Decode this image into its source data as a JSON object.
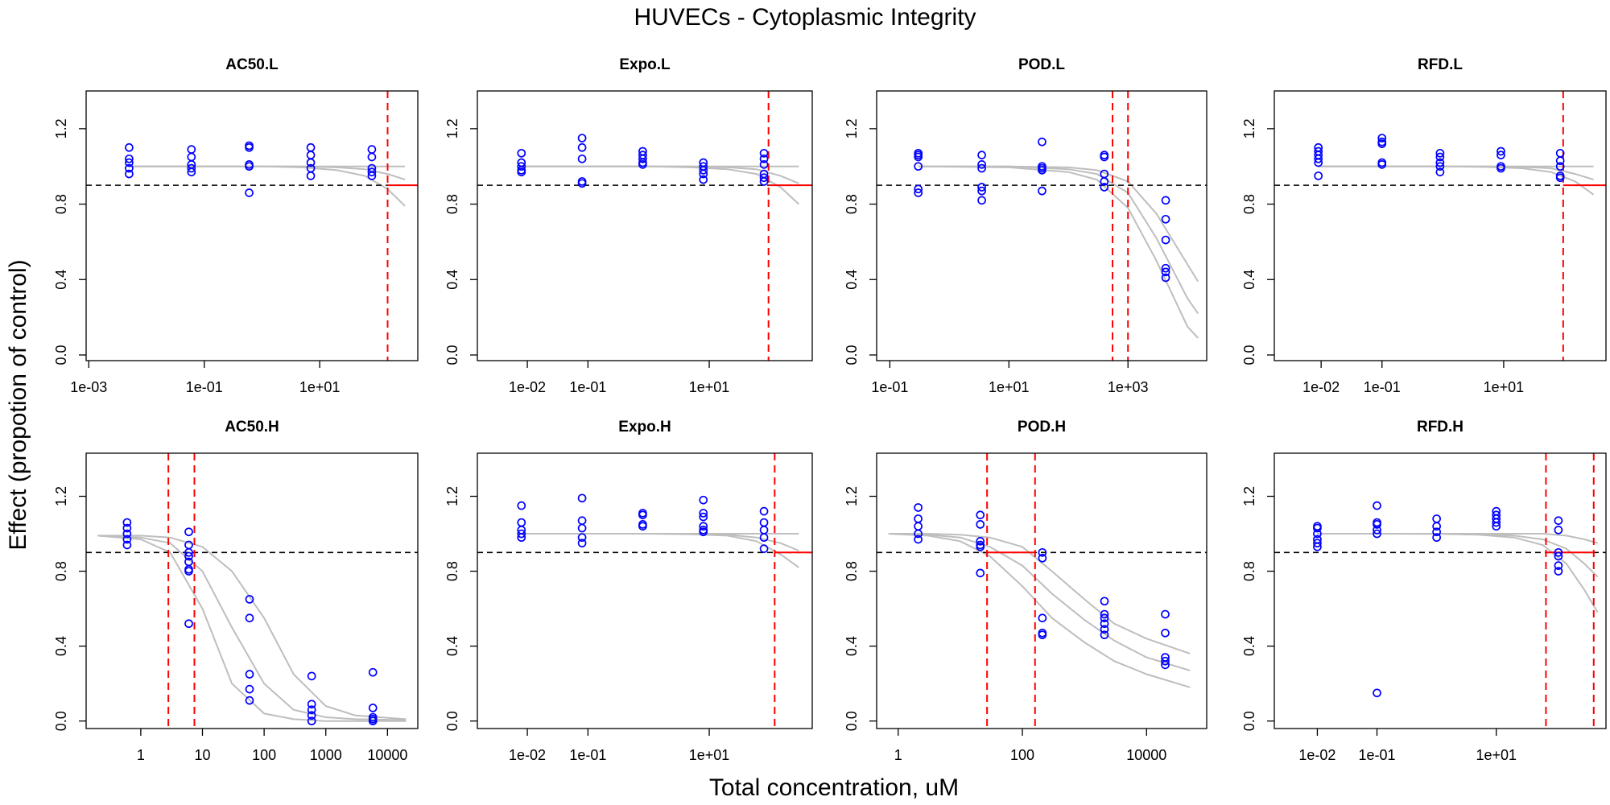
{
  "title": "HUVECs -  Cytoplasmic Integrity",
  "x_label": "Total concentration, uM",
  "y_label": "Effect (propotion of control)",
  "chart_data": [
    {
      "type": "scatter",
      "title": "AC50.L",
      "xlog": true,
      "xlim": [
        0.0009,
        500
      ],
      "xticks": [
        {
          "value": 0.001,
          "label": "1e-03"
        },
        {
          "value": 0.1,
          "label": "1e-01"
        },
        {
          "value": 10,
          "label": "1e+01"
        }
      ],
      "ylim": [
        -0.03,
        1.4
      ],
      "yticks": [
        {
          "value": 0,
          "label": "0.0"
        },
        0.4,
        0.8,
        1.2
      ],
      "x": [
        0.005,
        0.005,
        0.005,
        0.005,
        0.005,
        0.06,
        0.06,
        0.06,
        0.06,
        0.06,
        0.6,
        0.6,
        0.6,
        0.6,
        0.6,
        7,
        7,
        7,
        7,
        7,
        80,
        80,
        80,
        80,
        80
      ],
      "y": [
        1.1,
        1.04,
        1.02,
        0.99,
        0.96,
        1.09,
        1.05,
        1.01,
        0.99,
        0.97,
        1.11,
        1.1,
        1.01,
        1.0,
        0.86,
        1.1,
        1.06,
        1.02,
        0.99,
        0.95,
        1.09,
        1.05,
        0.99,
        0.97,
        0.95
      ],
      "point_color": "#0000ff",
      "curves_x": [
        0.005,
        0.1,
        1,
        5,
        20,
        60,
        150,
        300
      ],
      "curves": [
        [
          1,
          1,
          1,
          1,
          1,
          1,
          1,
          1
        ],
        [
          1,
          1,
          1,
          1,
          0.995,
          0.985,
          0.96,
          0.93
        ],
        [
          1,
          1,
          1,
          0.995,
          0.98,
          0.95,
          0.88,
          0.79
        ]
      ],
      "curve_color": "#bebebe",
      "hline": 0.9,
      "hline_color": "#000000",
      "vlines": [
        150
      ],
      "vline_color": "#ff0000",
      "red_segment": [
        150,
        500
      ]
    },
    {
      "type": "scatter",
      "title": "Expo.L",
      "xlog": true,
      "xlim": [
        0.0015,
        500
      ],
      "xticks": [
        {
          "value": 0.01,
          "label": "1e-02"
        },
        {
          "value": 0.1,
          "label": "1e-01"
        },
        {
          "value": 10,
          "label": "1e+01"
        }
      ],
      "ylim": [
        -0.03,
        1.4
      ],
      "yticks": [
        {
          "value": 0,
          "label": "0.0"
        },
        0.4,
        0.8,
        1.2
      ],
      "x": [
        0.008,
        0.008,
        0.008,
        0.008,
        0.008,
        0.08,
        0.08,
        0.08,
        0.08,
        0.08,
        0.8,
        0.8,
        0.8,
        0.8,
        0.8,
        8,
        8,
        8,
        8,
        8,
        80,
        80,
        80,
        80,
        80,
        80
      ],
      "y": [
        1.07,
        1.02,
        1.0,
        0.98,
        0.97,
        1.15,
        1.1,
        1.04,
        0.92,
        0.91,
        1.08,
        1.06,
        1.04,
        1.02,
        1.01,
        1.02,
        1.0,
        0.98,
        0.96,
        0.93,
        1.07,
        1.04,
        1.01,
        0.96,
        0.94,
        0.92
      ],
      "point_color": "#0000ff",
      "curves_x": [
        0.008,
        0.1,
        1,
        5,
        20,
        60,
        150,
        300
      ],
      "curves": [
        [
          1,
          1,
          1,
          1,
          1,
          1,
          1,
          1
        ],
        [
          1,
          1,
          1,
          1,
          0.995,
          0.985,
          0.95,
          0.91
        ],
        [
          1,
          1,
          1,
          0.995,
          0.985,
          0.96,
          0.89,
          0.8
        ]
      ],
      "curve_color": "#bebebe",
      "hline": 0.9,
      "hline_color": "#000000",
      "vlines": [
        95
      ],
      "vline_color": "#ff0000",
      "red_segment": [
        95,
        500
      ]
    },
    {
      "type": "scatter",
      "title": "POD.L",
      "xlog": true,
      "xlim": [
        0.06,
        21000
      ],
      "xticks": [
        {
          "value": 0.1,
          "label": "1e-01"
        },
        {
          "value": 10,
          "label": "1e+01"
        },
        {
          "value": 1000,
          "label": "1e+03"
        }
      ],
      "ylim": [
        -0.03,
        1.4
      ],
      "yticks": [
        {
          "value": 0,
          "label": "0.0"
        },
        0.4,
        0.8,
        1.2
      ],
      "x": [
        0.3,
        0.3,
        0.3,
        0.3,
        0.3,
        0.3,
        3.5,
        3.5,
        3.5,
        3.5,
        3.5,
        3.5,
        36,
        36,
        36,
        36,
        36,
        400,
        400,
        400,
        400,
        400,
        4300,
        4300,
        4300,
        4300,
        4300,
        4300
      ],
      "y": [
        1.07,
        1.06,
        1.05,
        1.0,
        0.88,
        0.86,
        1.06,
        1.01,
        0.99,
        0.89,
        0.87,
        0.82,
        1.13,
        1.0,
        0.99,
        0.98,
        0.87,
        1.06,
        1.05,
        0.96,
        0.92,
        0.89,
        0.82,
        0.72,
        0.61,
        0.46,
        0.44,
        0.41
      ],
      "point_color": "#0000ff",
      "curves_x": [
        0.3,
        10,
        100,
        300,
        1000,
        3000,
        10000,
        15000
      ],
      "curves": [
        [
          1,
          1,
          0.995,
          0.98,
          0.92,
          0.75,
          0.48,
          0.39
        ],
        [
          1,
          1,
          0.985,
          0.96,
          0.86,
          0.62,
          0.3,
          0.22
        ],
        [
          1,
          0.995,
          0.97,
          0.93,
          0.78,
          0.5,
          0.15,
          0.09
        ]
      ],
      "curve_color": "#bebebe",
      "hline": 0.9,
      "hline_color": "#000000",
      "vlines": [
        550,
        1000
      ],
      "vline_color": "#ff0000"
    },
    {
      "type": "scatter",
      "title": "RFD.L",
      "xlog": true,
      "xlim": [
        0.0017,
        480
      ],
      "xticks": [
        {
          "value": 0.01,
          "label": "1e-02"
        },
        {
          "value": 0.1,
          "label": "1e-01"
        },
        {
          "value": 10,
          "label": "1e+01"
        }
      ],
      "ylim": [
        -0.03,
        1.4
      ],
      "yticks": [
        {
          "value": 0,
          "label": "0.0"
        },
        0.4,
        0.8,
        1.2
      ],
      "x": [
        0.009,
        0.009,
        0.009,
        0.009,
        0.009,
        0.009,
        0.1,
        0.1,
        0.1,
        0.1,
        0.1,
        0.9,
        0.9,
        0.9,
        0.9,
        0.9,
        9,
        9,
        9,
        9,
        85,
        85,
        85,
        85,
        85
      ],
      "y": [
        1.1,
        1.08,
        1.06,
        1.04,
        1.02,
        0.95,
        1.15,
        1.13,
        1.12,
        1.02,
        1.01,
        1.07,
        1.05,
        1.02,
        1.0,
        0.97,
        1.08,
        1.06,
        1.0,
        0.99,
        1.07,
        1.03,
        1.0,
        0.95,
        0.94
      ],
      "point_color": "#0000ff",
      "curves_x": [
        0.009,
        0.1,
        1,
        5,
        20,
        60,
        150,
        300
      ],
      "curves": [
        [
          1,
          1,
          1,
          1,
          1,
          1,
          1,
          1
        ],
        [
          1,
          1,
          1,
          1,
          0.997,
          0.99,
          0.96,
          0.93
        ],
        [
          1,
          1,
          1,
          0.997,
          0.99,
          0.97,
          0.92,
          0.85
        ]
      ],
      "curve_color": "#bebebe",
      "hline": 0.9,
      "hline_color": "#000000",
      "vlines": [
        95
      ],
      "vline_color": "#ff0000",
      "red_segment": [
        95,
        480
      ]
    },
    {
      "type": "scatter",
      "title": "AC50.H",
      "xlog": true,
      "xlim": [
        0.13,
        31000
      ],
      "xticks": [
        1,
        10,
        100,
        1000,
        10000
      ],
      "ylim": [
        -0.04,
        1.43
      ],
      "yticks": [
        {
          "value": 0,
          "label": "0.0"
        },
        0.4,
        0.8,
        1.2
      ],
      "x": [
        0.6,
        0.6,
        0.6,
        0.6,
        0.6,
        6,
        6,
        6,
        6,
        6,
        6,
        6,
        6,
        58,
        58,
        58,
        58,
        58,
        590,
        590,
        590,
        590,
        590,
        5800,
        5800,
        5800,
        5800,
        5800
      ],
      "y": [
        1.06,
        1.03,
        1.0,
        0.97,
        0.94,
        1.01,
        0.94,
        0.9,
        0.88,
        0.85,
        0.81,
        0.8,
        0.52,
        0.65,
        0.55,
        0.25,
        0.17,
        0.11,
        0.24,
        0.09,
        0.06,
        0.03,
        0.0,
        0.26,
        0.07,
        0.02,
        0.01,
        0.0
      ],
      "point_color": "#0000ff",
      "curves_x": [
        0.2,
        1,
        3,
        10,
        30,
        100,
        300,
        1000,
        3000,
        20000
      ],
      "curves": [
        [
          0.99,
          0.99,
          0.98,
          0.93,
          0.8,
          0.55,
          0.25,
          0.08,
          0.03,
          0.01
        ],
        [
          0.99,
          0.98,
          0.95,
          0.8,
          0.5,
          0.2,
          0.06,
          0.02,
          0.01,
          0.005
        ],
        [
          0.99,
          0.97,
          0.9,
          0.6,
          0.2,
          0.04,
          0.01,
          0,
          0,
          0
        ]
      ],
      "curve_color": "#bebebe",
      "hline": 0.9,
      "hline_color": "#000000",
      "vlines": [
        2.8,
        7.4
      ],
      "vline_color": "#ff0000"
    },
    {
      "type": "scatter",
      "title": "Expo.H",
      "xlog": true,
      "xlim": [
        0.0015,
        500
      ],
      "xticks": [
        {
          "value": 0.01,
          "label": "1e-02"
        },
        {
          "value": 0.1,
          "label": "1e-01"
        },
        {
          "value": 10,
          "label": "1e+01"
        }
      ],
      "ylim": [
        -0.04,
        1.43
      ],
      "yticks": [
        {
          "value": 0,
          "label": "0.0"
        },
        0.4,
        0.8,
        1.2
      ],
      "x": [
        0.008,
        0.008,
        0.008,
        0.008,
        0.008,
        0.08,
        0.08,
        0.08,
        0.08,
        0.08,
        0.8,
        0.8,
        0.8,
        0.8,
        8,
        8,
        8,
        8,
        8,
        8,
        80,
        80,
        80,
        80,
        80
      ],
      "y": [
        1.15,
        1.06,
        1.02,
        1.0,
        0.98,
        1.19,
        1.07,
        1.03,
        0.98,
        0.95,
        1.11,
        1.1,
        1.05,
        1.04,
        1.18,
        1.11,
        1.09,
        1.04,
        1.02,
        1.01,
        1.12,
        1.06,
        1.02,
        0.98,
        0.92
      ],
      "point_color": "#0000ff",
      "curves_x": [
        0.008,
        0.1,
        1,
        5,
        20,
        60,
        150,
        300
      ],
      "curves": [
        [
          1,
          1,
          1,
          1,
          1,
          1,
          1,
          1
        ],
        [
          1,
          1,
          1,
          1,
          0.995,
          0.98,
          0.95,
          0.91
        ],
        [
          1,
          1,
          1,
          0.997,
          0.99,
          0.96,
          0.89,
          0.82
        ]
      ],
      "curve_color": "#bebebe",
      "hline": 0.9,
      "hline_color": "#000000",
      "vlines": [
        120
      ],
      "vline_color": "#ff0000",
      "red_segment": [
        120,
        500
      ]
    },
    {
      "type": "scatter",
      "title": "POD.H",
      "xlog": true,
      "xlim": [
        0.45,
        93000
      ],
      "xticks": [
        1,
        100,
        10000
      ],
      "ylim": [
        -0.04,
        1.43
      ],
      "yticks": [
        {
          "value": 0,
          "label": "0.0"
        },
        0.4,
        0.8,
        1.2
      ],
      "x": [
        2.1,
        2.1,
        2.1,
        2.1,
        2.1,
        21,
        21,
        21,
        21,
        21,
        21,
        210,
        210,
        210,
        210,
        210,
        2100,
        2100,
        2100,
        2100,
        2100,
        2100,
        20000,
        20000,
        20000,
        20000,
        20000
      ],
      "y": [
        1.14,
        1.08,
        1.04,
        1.0,
        0.97,
        1.1,
        1.05,
        0.96,
        0.94,
        0.93,
        0.79,
        0.9,
        0.87,
        0.55,
        0.47,
        0.46,
        0.64,
        0.57,
        0.55,
        0.52,
        0.49,
        0.46,
        0.57,
        0.47,
        0.34,
        0.32,
        0.3
      ],
      "point_color": "#0000ff",
      "curves_x": [
        0.7,
        3,
        10,
        30,
        100,
        300,
        1000,
        3000,
        10000,
        50000
      ],
      "curves": [
        [
          1,
          1,
          0.995,
          0.98,
          0.93,
          0.8,
          0.65,
          0.52,
          0.44,
          0.36
        ],
        [
          1,
          0.995,
          0.98,
          0.93,
          0.83,
          0.68,
          0.54,
          0.43,
          0.34,
          0.27
        ],
        [
          1,
          0.99,
          0.96,
          0.88,
          0.72,
          0.55,
          0.42,
          0.32,
          0.25,
          0.18
        ]
      ],
      "curve_color": "#bebebe",
      "hline": 0.9,
      "hline_color": "#000000",
      "vlines": [
        27,
        160
      ],
      "vline_color": "#ff0000",
      "red_segment": [
        27,
        160
      ]
    },
    {
      "type": "scatter",
      "title": "RFD.H",
      "xlog": true,
      "xlim": [
        0.0019,
        690
      ],
      "xticks": [
        {
          "value": 0.01,
          "label": "1e-02"
        },
        {
          "value": 0.1,
          "label": "1e-01"
        },
        {
          "value": 10,
          "label": "1e+01"
        }
      ],
      "ylim": [
        -0.04,
        1.43
      ],
      "yticks": [
        {
          "value": 0,
          "label": "0.0"
        },
        0.4,
        0.8,
        1.2
      ],
      "x": [
        0.01,
        0.01,
        0.01,
        0.01,
        0.01,
        0.01,
        0.1,
        0.1,
        0.1,
        0.1,
        0.1,
        0.1,
        1,
        1,
        1,
        1,
        10,
        10,
        10,
        10,
        10,
        110,
        110,
        110,
        110,
        110,
        110
      ],
      "y": [
        1.04,
        1.03,
        1.0,
        0.97,
        0.95,
        0.93,
        1.15,
        1.06,
        1.05,
        1.02,
        1.0,
        0.15,
        1.08,
        1.04,
        1.01,
        0.98,
        1.12,
        1.1,
        1.08,
        1.06,
        1.04,
        1.07,
        1.02,
        0.9,
        0.88,
        0.83,
        0.8
      ],
      "point_color": "#0000ff",
      "curves_x": [
        0.01,
        0.1,
        1,
        5,
        20,
        60,
        150,
        300,
        500
      ],
      "curves": [
        [
          1,
          1,
          1,
          1,
          1,
          1,
          0.99,
          0.97,
          0.95
        ],
        [
          1,
          1,
          1,
          0.998,
          0.99,
          0.97,
          0.92,
          0.84,
          0.77
        ],
        [
          1,
          1,
          0.999,
          0.995,
          0.98,
          0.94,
          0.84,
          0.7,
          0.58
        ]
      ],
      "curve_color": "#bebebe",
      "hline": 0.9,
      "hline_color": "#000000",
      "vlines": [
        68,
        430
      ],
      "vline_color": "#ff0000",
      "red_segment": [
        68,
        430
      ]
    }
  ]
}
